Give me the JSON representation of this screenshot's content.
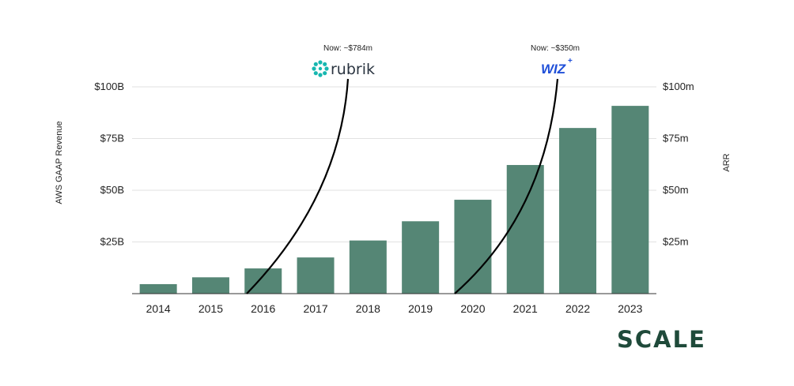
{
  "chart_data": {
    "type": "bar",
    "categories": [
      "2014",
      "2015",
      "2016",
      "2017",
      "2018",
      "2019",
      "2020",
      "2021",
      "2022",
      "2023"
    ],
    "series": [
      {
        "values": [
          4.6,
          7.9,
          12.2,
          17.5,
          25.7,
          35.0,
          45.4,
          62.2,
          80.1,
          90.8
        ]
      }
    ],
    "ylabel": "AWS GAAP Revenue",
    "y2label": "ARR",
    "ylim": [
      0,
      100
    ],
    "yticks": [
      "$25B",
      "$50B",
      "$75B",
      "$100B"
    ],
    "y2ticks": [
      "$25m",
      "$50m",
      "$75m",
      "$100m"
    ],
    "bar_color": "#558675",
    "curves": [
      {
        "company": "rubrik",
        "annotation": "Now: ~$784m",
        "start_category": "2016"
      },
      {
        "company": "WIZ",
        "annotation": "Now: ~$350m",
        "start_category": "2020"
      }
    ]
  },
  "brand": {
    "logo_text": "SCALE",
    "color": "#1f4a3a"
  }
}
